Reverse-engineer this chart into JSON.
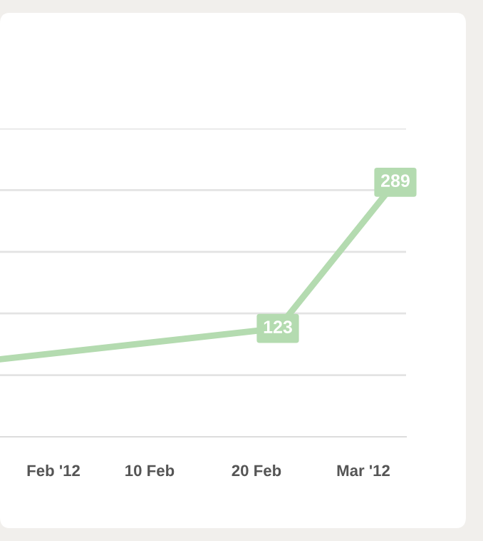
{
  "chart_data": {
    "type": "line",
    "x": [
      "2012-01-27",
      "2012-02-22",
      "2012-03-04"
    ],
    "series": [
      {
        "color": "#b4dbb0",
        "values": [
          88,
          123,
          289
        ],
        "value_labels": [
          null,
          "123",
          "289"
        ]
      }
    ],
    "xlim": [
      "2012-01-27",
      "2012-03-05"
    ],
    "xticks": [
      {
        "value": "2012-02-01",
        "label": "Feb '12"
      },
      {
        "value": "2012-02-10",
        "label": "10 Feb"
      },
      {
        "value": "2012-02-20",
        "label": "20 Feb"
      },
      {
        "value": "2012-03-01",
        "label": "Mar '12"
      }
    ],
    "ylim": [
      0,
      350
    ],
    "yticks": [
      {
        "value": 70,
        "label": null
      },
      {
        "value": 140,
        "label": null
      },
      {
        "value": 210,
        "label": null
      },
      {
        "value": 280,
        "label": null
      },
      {
        "value": 350,
        "label": null
      }
    ],
    "grid": "y",
    "tick_labels": "x",
    "line_style": "solid",
    "legend": false
  }
}
